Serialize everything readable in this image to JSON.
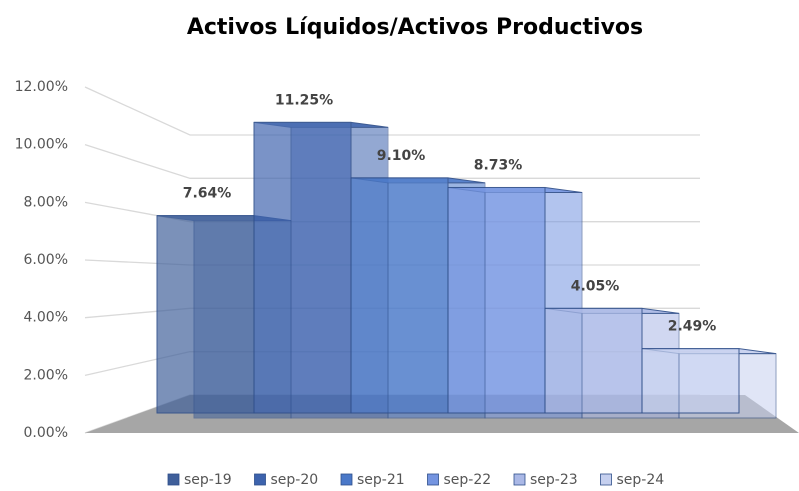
{
  "chart_data": {
    "type": "bar3d",
    "title": "Activos Líquidos/Activos Productivos",
    "categories": [
      "sep-19",
      "sep-20",
      "sep-21",
      "sep-22",
      "sep-23",
      "sep-24"
    ],
    "values": [
      7.64,
      11.25,
      9.1,
      8.73,
      4.05,
      2.49
    ],
    "value_labels": [
      "7.64%",
      "11.25%",
      "9.10%",
      "8.73%",
      "4.05%",
      "2.49%"
    ],
    "colors": [
      "#3f5f9a",
      "#3d63ad",
      "#4a78c8",
      "#7494e0",
      "#aab8e6",
      "#c6d0ef"
    ],
    "ylim": [
      0,
      12
    ],
    "yticks": [
      {
        "value": 0,
        "label": "0.00%"
      },
      {
        "value": 2,
        "label": "2.00%"
      },
      {
        "value": 4,
        "label": "4.00%"
      },
      {
        "value": 6,
        "label": "6.00%"
      },
      {
        "value": 8,
        "label": "8.00%"
      },
      {
        "value": 10,
        "label": "10.00%"
      },
      {
        "value": 12,
        "label": "12.00%"
      }
    ],
    "grid": true,
    "legend": "bottom"
  }
}
